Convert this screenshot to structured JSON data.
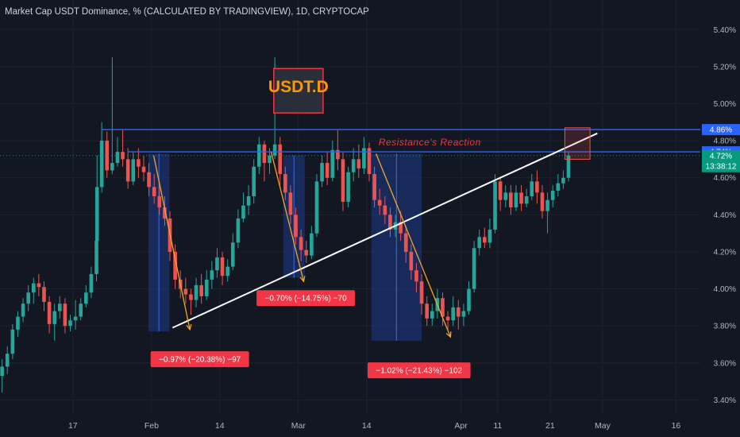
{
  "header": {
    "title": "Market Cap USDT Dominance, % (CALCULATED BY TRADINGVIEW), 1D, CRYPTOCAP"
  },
  "colors": {
    "background": "#131722",
    "up": "#26a69a",
    "down": "#ef5350",
    "grid": "#1e222d",
    "axis_text": "#b2b5be",
    "resistance": "#2962ff",
    "trendline": "#ffffff",
    "arrow": "#f6a623",
    "measure_fill": "#1e3a8a",
    "label_red": "#f23645",
    "price_tag": "#089981"
  },
  "chart_data": {
    "type": "candlestick",
    "title": "USDT.D",
    "y_axis": {
      "ticks": [
        "5.40%",
        "5.20%",
        "5.00%",
        "4.80%",
        "4.60%",
        "4.40%",
        "4.20%",
        "4.00%",
        "3.80%",
        "3.60%",
        "3.40%"
      ],
      "tick_values": [
        5.4,
        5.2,
        5.0,
        4.8,
        4.6,
        4.4,
        4.2,
        4.0,
        3.8,
        3.6,
        3.4
      ],
      "range": [
        3.2,
        5.56
      ]
    },
    "x_axis": {
      "ticks": [
        "17",
        "Feb",
        "14",
        "Mar",
        "14",
        "Apr",
        "11",
        "21",
        "May",
        "16"
      ],
      "tick_days": [
        0,
        15,
        28,
        43,
        56,
        74,
        81,
        91,
        101,
        115
      ],
      "range": [
        -13.9,
        127.2
      ]
    },
    "candles": [
      [
        -13.5,
        3.53,
        3.58,
        3.62,
        3.44
      ],
      [
        -12.5,
        3.58,
        3.65,
        3.69,
        3.54
      ],
      [
        -11.5,
        3.65,
        3.78,
        3.81,
        3.62
      ],
      [
        -10.5,
        3.78,
        3.85,
        3.88,
        3.74
      ],
      [
        -9.5,
        3.85,
        3.92,
        3.95,
        3.82
      ],
      [
        -8.5,
        3.92,
        3.98,
        4.02,
        3.88
      ],
      [
        -7.5,
        3.98,
        4.03,
        4.06,
        3.92
      ],
      [
        -6.5,
        4.03,
        4.01,
        4.08,
        3.96
      ],
      [
        -5.5,
        4.01,
        3.93,
        4.04,
        3.88
      ],
      [
        -4.5,
        3.93,
        3.81,
        3.96,
        3.76
      ],
      [
        -3.5,
        3.81,
        3.88,
        3.92,
        3.72
      ],
      [
        -2.5,
        3.88,
        3.92,
        3.96,
        3.84
      ],
      [
        -1.5,
        3.92,
        3.8,
        3.95,
        3.76
      ],
      [
        -0.5,
        3.8,
        3.83,
        3.86,
        3.77
      ],
      [
        0.5,
        3.83,
        3.85,
        3.94,
        3.78
      ],
      [
        1.5,
        3.85,
        3.92,
        3.95,
        3.83
      ],
      [
        2.5,
        3.92,
        3.98,
        4.02,
        3.9
      ],
      [
        3.5,
        3.98,
        4.08,
        4.12,
        3.95
      ],
      [
        4.5,
        4.08,
        4.26,
        4.3,
        4.04
      ],
      [
        4.6,
        4.26,
        4.55,
        4.72,
        4.22
      ],
      [
        5.5,
        4.55,
        4.8,
        4.9,
        4.52
      ],
      [
        6.5,
        4.8,
        4.64,
        4.85,
        4.6
      ],
      [
        7.5,
        4.64,
        4.68,
        5.25,
        4.62
      ],
      [
        8.5,
        4.68,
        4.74,
        4.82,
        4.66
      ],
      [
        9.5,
        4.74,
        4.7,
        4.86,
        4.66
      ],
      [
        10.5,
        4.7,
        4.58,
        4.76,
        4.54
      ],
      [
        11.5,
        4.58,
        4.7,
        4.74,
        4.56
      ],
      [
        12.5,
        4.7,
        4.66,
        4.76,
        4.6
      ],
      [
        13.5,
        4.66,
        4.63,
        4.72,
        4.58
      ],
      [
        14.5,
        4.63,
        4.55,
        4.68,
        4.5
      ],
      [
        15.5,
        4.55,
        4.5,
        4.62,
        4.46
      ],
      [
        16.5,
        4.5,
        4.44,
        4.56,
        4.4
      ],
      [
        17.5,
        4.44,
        4.38,
        4.5,
        4.34
      ],
      [
        18.5,
        4.38,
        4.2,
        4.42,
        4.15
      ],
      [
        19.5,
        4.2,
        4.05,
        4.24,
        4.0
      ],
      [
        20.5,
        4.05,
        4.0,
        4.1,
        3.95
      ],
      [
        21.5,
        4.0,
        3.97,
        4.06,
        3.92
      ],
      [
        22.5,
        3.97,
        3.94,
        4.0,
        3.86
      ],
      [
        23.5,
        3.94,
        4.02,
        4.06,
        3.9
      ],
      [
        24.5,
        4.02,
        3.96,
        4.08,
        3.92
      ],
      [
        25.5,
        3.96,
        4.05,
        4.1,
        3.94
      ],
      [
        26.5,
        4.05,
        4.1,
        4.15,
        4.0
      ],
      [
        27.5,
        4.1,
        4.17,
        4.22,
        4.06
      ],
      [
        28.5,
        4.17,
        4.07,
        4.2,
        4.02
      ],
      [
        29.5,
        4.07,
        4.12,
        4.16,
        4.04
      ],
      [
        30.5,
        4.12,
        4.25,
        4.3,
        4.1
      ],
      [
        31.5,
        4.25,
        4.38,
        4.43,
        4.22
      ],
      [
        32.5,
        4.38,
        4.45,
        4.52,
        4.36
      ],
      [
        33.5,
        4.45,
        4.5,
        4.56,
        4.4
      ],
      [
        34.5,
        4.5,
        4.66,
        4.7,
        4.46
      ],
      [
        35.5,
        4.66,
        4.78,
        4.82,
        4.62
      ],
      [
        36.5,
        4.78,
        4.68,
        4.8,
        4.58
      ],
      [
        37.5,
        4.68,
        4.72,
        4.76,
        4.62
      ],
      [
        38.5,
        4.72,
        4.78,
        5.25,
        4.7
      ],
      [
        39.5,
        4.78,
        4.62,
        4.82,
        4.56
      ],
      [
        40.5,
        4.62,
        4.52,
        4.66,
        4.48
      ],
      [
        41.5,
        4.52,
        4.4,
        4.56,
        4.35
      ],
      [
        42.5,
        4.4,
        4.28,
        4.44,
        4.24
      ],
      [
        43.5,
        4.28,
        4.21,
        4.32,
        4.15
      ],
      [
        44.5,
        4.21,
        4.18,
        4.26,
        4.14
      ],
      [
        45.5,
        4.18,
        4.3,
        4.34,
        4.16
      ],
      [
        46.5,
        4.3,
        4.58,
        4.62,
        4.28
      ],
      [
        47.5,
        4.58,
        4.68,
        4.72,
        4.55
      ],
      [
        48.5,
        4.68,
        4.6,
        4.74,
        4.56
      ],
      [
        49.5,
        4.6,
        4.75,
        4.8,
        4.58
      ],
      [
        50.5,
        4.75,
        4.7,
        4.86,
        4.64
      ],
      [
        51.5,
        4.7,
        4.47,
        4.74,
        4.42
      ],
      [
        52.5,
        4.47,
        4.63,
        4.66,
        4.44
      ],
      [
        53.5,
        4.63,
        4.7,
        4.76,
        4.58
      ],
      [
        54.5,
        4.7,
        4.65,
        4.78,
        4.6
      ],
      [
        55.5,
        4.65,
        4.76,
        4.82,
        4.62
      ],
      [
        56.5,
        4.76,
        4.62,
        4.79,
        4.58
      ],
      [
        57.5,
        4.62,
        4.48,
        4.66,
        4.44
      ],
      [
        58.5,
        4.48,
        4.45,
        4.54,
        4.4
      ],
      [
        59.5,
        4.45,
        4.4,
        4.5,
        4.35
      ],
      [
        60.5,
        4.4,
        4.32,
        4.44,
        4.28
      ],
      [
        61.5,
        4.32,
        4.36,
        4.4,
        4.28
      ],
      [
        62.5,
        4.36,
        4.3,
        4.42,
        4.26
      ],
      [
        63.5,
        4.3,
        4.2,
        4.34,
        4.14
      ],
      [
        64.5,
        4.2,
        4.1,
        4.24,
        4.05
      ],
      [
        65.5,
        4.1,
        4.04,
        4.14,
        3.98
      ],
      [
        66.5,
        4.04,
        3.92,
        4.08,
        3.86
      ],
      [
        67.5,
        3.92,
        3.84,
        3.96,
        3.8
      ],
      [
        68.5,
        3.84,
        3.88,
        3.92,
        3.8
      ],
      [
        69.5,
        3.88,
        3.95,
        4.0,
        3.84
      ],
      [
        70.5,
        3.95,
        3.85,
        3.98,
        3.8
      ],
      [
        71.5,
        3.85,
        3.83,
        3.88,
        3.78
      ],
      [
        72.5,
        3.83,
        3.9,
        3.96,
        3.8
      ],
      [
        73.5,
        3.9,
        3.85,
        3.94,
        3.78
      ],
      [
        74.5,
        3.85,
        3.88,
        3.92,
        3.8
      ],
      [
        75.5,
        3.88,
        4.0,
        4.04,
        3.86
      ],
      [
        76.5,
        4.0,
        4.22,
        4.26,
        3.98
      ],
      [
        77.5,
        4.22,
        4.28,
        4.32,
        4.18
      ],
      [
        78.5,
        4.28,
        4.25,
        4.33,
        4.22
      ],
      [
        79.5,
        4.25,
        4.32,
        4.38,
        4.22
      ],
      [
        80.5,
        4.32,
        4.58,
        4.62,
        4.3
      ],
      [
        81.5,
        4.58,
        4.48,
        4.6,
        4.42
      ],
      [
        82.5,
        4.48,
        4.52,
        4.56,
        4.44
      ],
      [
        83.5,
        4.52,
        4.44,
        4.56,
        4.4
      ],
      [
        84.5,
        4.44,
        4.52,
        4.56,
        4.42
      ],
      [
        85.5,
        4.52,
        4.46,
        4.56,
        4.42
      ],
      [
        86.5,
        4.46,
        4.5,
        4.54,
        4.44
      ],
      [
        87.5,
        4.5,
        4.58,
        4.62,
        4.48
      ],
      [
        88.5,
        4.58,
        4.52,
        4.64,
        4.46
      ],
      [
        89.5,
        4.52,
        4.42,
        4.56,
        4.38
      ],
      [
        90.5,
        4.42,
        4.48,
        4.52,
        4.3
      ],
      [
        91.5,
        4.48,
        4.53,
        4.56,
        4.44
      ],
      [
        92.5,
        4.53,
        4.57,
        4.62,
        4.5
      ],
      [
        93.5,
        4.57,
        4.6,
        4.64,
        4.54
      ],
      [
        94.5,
        4.6,
        4.72,
        4.74,
        4.58
      ]
    ],
    "resistance_lines": [
      4.86,
      4.74
    ],
    "current_price": 4.72,
    "countdown": "13:38:12",
    "measures": [
      {
        "x0": 14.4,
        "x1": 18.4,
        "y_top": 4.73,
        "y_bot": 3.77,
        "label": "−0.97% (−20.38%) −97"
      },
      {
        "x0": 40.1,
        "x1": 44.2,
        "y_top": 4.72,
        "y_bot": 4.06,
        "label": "−0.70% (−14.75%) −70"
      },
      {
        "x0": 56.9,
        "x1": 66.5,
        "y_top": 4.73,
        "y_bot": 3.72,
        "label": "−1.02% (−21.43%) −102"
      }
    ],
    "measure_labels_anchor": [
      [
        24.2,
        3.62
      ],
      [
        44.4,
        3.95
      ],
      [
        66.0,
        3.56
      ]
    ],
    "arrows": [
      [
        [
          15.4,
          4.72
        ],
        [
          22.3,
          3.78
        ]
      ],
      [
        [
          37.8,
          4.74
        ],
        [
          44.0,
          4.04
        ]
      ],
      [
        [
          57.8,
          4.73
        ],
        [
          72.0,
          3.74
        ]
      ]
    ],
    "trendline": [
      [
        19.0,
        3.79
      ],
      [
        100.0,
        4.84
      ]
    ],
    "annotations": {
      "ticker_box": "USDT.D",
      "resistance_text": "Resistance's Reaction"
    }
  }
}
